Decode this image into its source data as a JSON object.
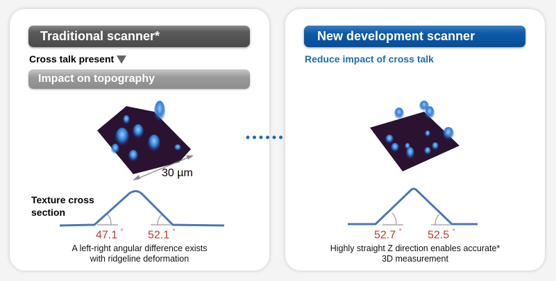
{
  "traditional": {
    "title": "Traditional scanner*",
    "status": "Cross talk present",
    "status_icon": "down-triangle-icon",
    "impact_label": "Impact on topography",
    "scale_label": "30 µm",
    "section_label_line1": "Texture cross",
    "section_label_line2": "section",
    "left_angle": "47.1",
    "right_angle": "52.1",
    "degree": "°",
    "caption_line1": "A left-right angular difference exists",
    "caption_line2": "with ridgeline deformation"
  },
  "new": {
    "title": "New development scanner",
    "status": "Reduce impact of cross talk",
    "left_angle": "52.7",
    "right_angle": "52.5",
    "degree": "°",
    "caption_line1": "Highly straight Z direction enables accurate*",
    "caption_line2": "3D measurement"
  },
  "colors": {
    "accent_blue": "#0d5aa8",
    "angle_red": "#c0392b",
    "profile_blue": "#4a78b0",
    "surface": "#2a1230"
  }
}
